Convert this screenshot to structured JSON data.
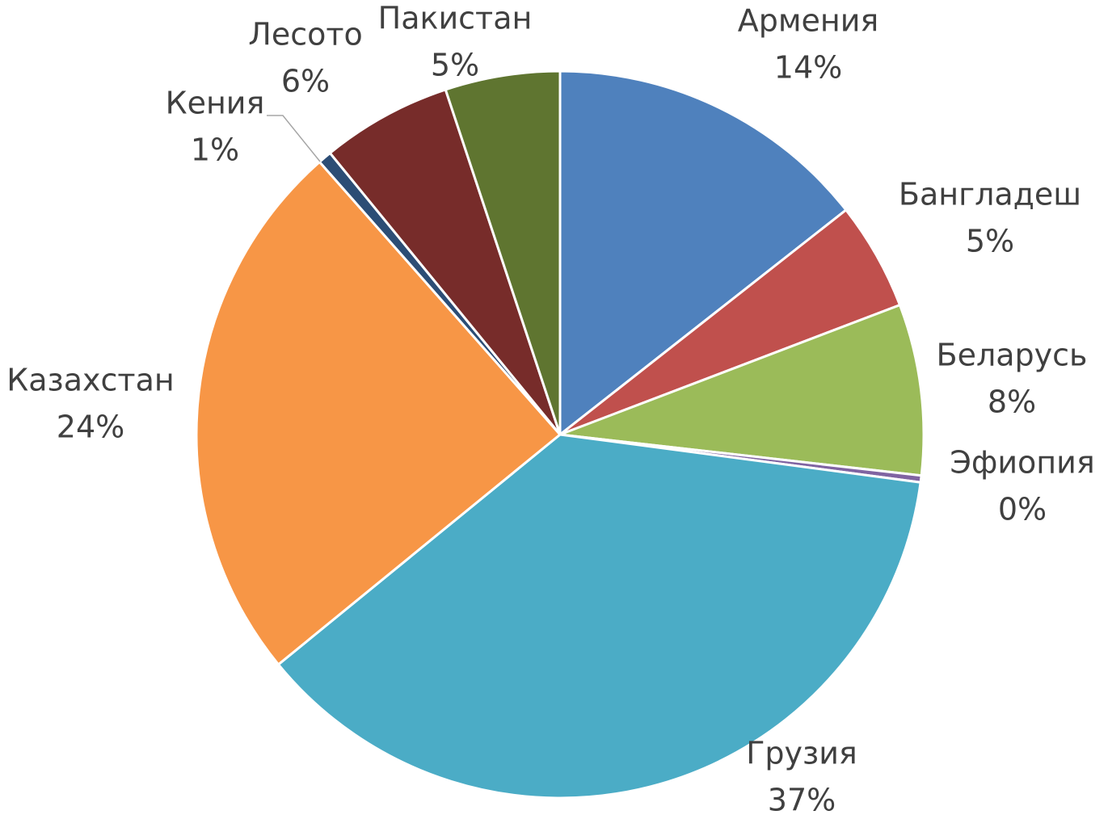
{
  "chart_data": {
    "type": "pie",
    "categories": [
      "Армения",
      "Бангладеш",
      "Беларусь",
      "Эфиопия",
      "Грузия",
      "Казахстан",
      "Кения",
      "Лесото",
      "Пакистан"
    ],
    "values": [
      14.4,
      4.8,
      7.6,
      0.3,
      37.0,
      24.4,
      0.6,
      5.8,
      5.1
    ],
    "value_labels": [
      "14%",
      "5%",
      "8%",
      "0%",
      "37%",
      "24%",
      "1%",
      "6%",
      "5%"
    ],
    "colors": [
      "#4f81bd",
      "#c0504d",
      "#9bbb59",
      "#8064a2",
      "#4bacc6",
      "#f79646",
      "#2c4d75",
      "#772c2a",
      "#5f7530"
    ]
  }
}
